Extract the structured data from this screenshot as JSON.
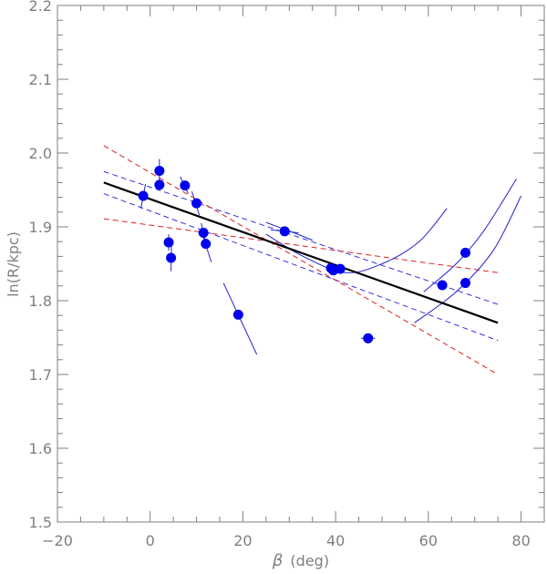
{
  "chart_data": {
    "type": "scatter",
    "title": "",
    "xlabel": {
      "symbol": "β",
      "unit": "(deg)"
    },
    "ylabel": "ln(R/kpc)",
    "xlim": [
      -20,
      85
    ],
    "ylim": [
      1.5,
      2.2
    ],
    "xticks": [
      "−20",
      "0",
      "20",
      "40",
      "60",
      "80"
    ],
    "yticks": [
      "1.5",
      "1.6",
      "1.7",
      "1.8",
      "1.9",
      "2.0",
      "2.1",
      "2.2"
    ],
    "xtick_values": [
      -20,
      0,
      20,
      40,
      60,
      80
    ],
    "ytick_values": [
      1.5,
      1.6,
      1.7,
      1.8,
      1.9,
      2.0,
      2.1,
      2.2
    ],
    "grid": false,
    "colors": {
      "axis": "#7f7f7f",
      "points": "#0000ee",
      "fit_line": "#000000",
      "inner_band": "#3333dd",
      "outer_band": "#dd2222",
      "error_curves": "#2222cc"
    },
    "points": [
      {
        "x": -1.5,
        "y": 1.942
      },
      {
        "x": 2.0,
        "y": 1.976
      },
      {
        "x": 2.0,
        "y": 1.957
      },
      {
        "x": 4.0,
        "y": 1.879
      },
      {
        "x": 4.5,
        "y": 1.858
      },
      {
        "x": 7.5,
        "y": 1.956
      },
      {
        "x": 10.0,
        "y": 1.932
      },
      {
        "x": 11.5,
        "y": 1.892
      },
      {
        "x": 12.0,
        "y": 1.877
      },
      {
        "x": 19.0,
        "y": 1.781
      },
      {
        "x": 29.0,
        "y": 1.894
      },
      {
        "x": 39.0,
        "y": 1.844
      },
      {
        "x": 39.5,
        "y": 1.841
      },
      {
        "x": 41.0,
        "y": 1.843
      },
      {
        "x": 47.0,
        "y": 1.749
      },
      {
        "x": 63.0,
        "y": 1.821
      },
      {
        "x": 68.0,
        "y": 1.865
      },
      {
        "x": 68.0,
        "y": 1.824
      }
    ],
    "error_bars": [
      {
        "x1": -2.0,
        "y1": 1.925,
        "x2": -1.0,
        "y2": 1.958
      },
      {
        "x1": 2.0,
        "y1": 1.96,
        "x2": 2.0,
        "y2": 1.992
      },
      {
        "x1": 4.0,
        "y1": 1.868,
        "x2": 4.0,
        "y2": 1.89
      },
      {
        "x1": 4.5,
        "y1": 1.84,
        "x2": 4.6,
        "y2": 1.875
      },
      {
        "x1": 6.5,
        "y1": 1.968,
        "x2": 8.2,
        "y2": 1.945
      },
      {
        "x1": 9.0,
        "y1": 1.948,
        "x2": 10.6,
        "y2": 1.916
      },
      {
        "x1": 11.0,
        "y1": 1.905,
        "x2": 12.0,
        "y2": 1.88
      },
      {
        "x1": 11.0,
        "y1": 1.895,
        "x2": 13.2,
        "y2": 1.852
      },
      {
        "x1": 15.8,
        "y1": 1.824,
        "x2": 23.0,
        "y2": 1.727
      },
      {
        "x1": 26.0,
        "y1": 1.896,
        "x2": 32.0,
        "y2": 1.892
      },
      {
        "x1": 45.5,
        "y1": 1.749,
        "x2": 48.5,
        "y2": 1.749
      }
    ],
    "fit_line": {
      "x": [
        -10,
        75
      ],
      "y": [
        1.96,
        1.77
      ]
    },
    "bands": [
      {
        "style": "blue-dashed",
        "x": [
          -10,
          75
        ],
        "y": [
          1.975,
          1.795
        ]
      },
      {
        "style": "blue-dashed",
        "x": [
          -10,
          75
        ],
        "y": [
          1.945,
          1.746
        ]
      },
      {
        "style": "red-dashed",
        "x": [
          -10,
          75
        ],
        "y": [
          2.01,
          1.7
        ]
      },
      {
        "style": "red-dashed",
        "x": [
          -10,
          75
        ],
        "y": [
          1.911,
          1.838
        ]
      }
    ],
    "curves": [
      {
        "points": [
          [
            25,
            1.906
          ],
          [
            31,
            1.892
          ],
          [
            35,
            1.882
          ]
        ]
      },
      {
        "points": [
          [
            25,
            1.89
          ],
          [
            33,
            1.86
          ],
          [
            42,
            1.838
          ],
          [
            50,
            1.85
          ],
          [
            58,
            1.88
          ],
          [
            64,
            1.925
          ]
        ]
      },
      {
        "points": [
          [
            59,
            1.812
          ],
          [
            66,
            1.85
          ],
          [
            72,
            1.895
          ],
          [
            79,
            1.965
          ]
        ]
      },
      {
        "points": [
          [
            57,
            1.77
          ],
          [
            66,
            1.812
          ],
          [
            74,
            1.868
          ],
          [
            80,
            1.942
          ]
        ]
      }
    ]
  }
}
